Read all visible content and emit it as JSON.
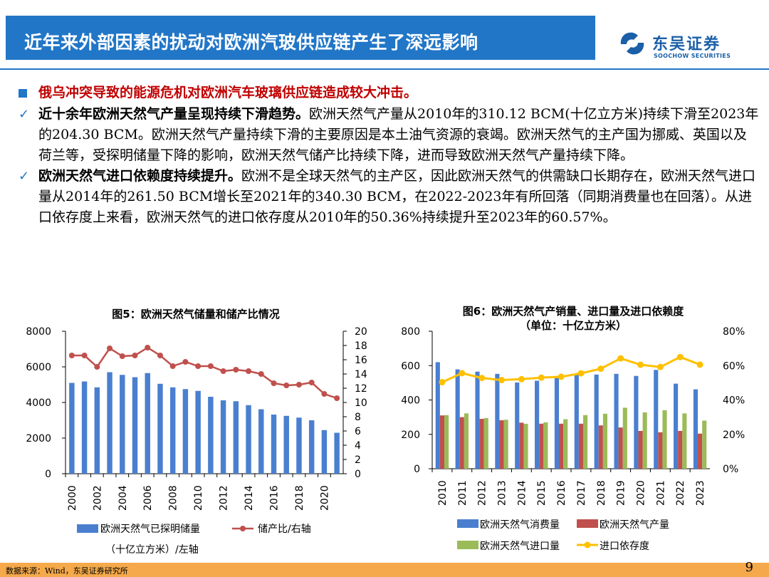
{
  "header": {
    "title": "近年来外部因素的扰动对欧洲汽玻供应链产生了深远影响"
  },
  "logo": {
    "cn": "东吴证券",
    "en": "SOOCHOW SECURITIES"
  },
  "bullets": {
    "lead": "俄乌冲突导致的能源危机对欧洲汽车玻璃供应链造成较大冲击。",
    "items": [
      {
        "bold": "近十余年欧洲天然气产量呈现持续下滑趋势。",
        "text": "欧洲天然气产量从2010年的310.12 BCM(十亿立方米)持续下滑至2023年的204.30 BCM。欧洲天然气产量持续下滑的主要原因是本土油气资源的衰竭。欧洲天然气的主产国为挪威、英国以及荷兰等，受探明储量下降的影响，欧洲天然气储产比持续下降，进而导致欧洲天然气产量持续下降。"
      },
      {
        "bold": "欧洲天然气进口依赖度持续提升。",
        "text": "欧洲不是全球天然气的主产区，因此欧洲天然气的供需缺口长期存在，欧洲天然气进口量从2014年的261.50 BCM增长至2021年的340.30 BCM，在2022-2023年有所回落（同期消费量也在回落）。从进口依存度上来看，欧洲天然气的进口依存度从2010年的50.36%持续提升至2023年的60.57%。"
      }
    ]
  },
  "footer": {
    "source": "数据来源：Wind，东吴证券研究所",
    "page": "9"
  },
  "colors": {
    "brand": "#2176c7",
    "lead": "#c00000",
    "bar_blue": "#4a7fd0",
    "bar_red": "#c0504d",
    "bar_green": "#9bbb59",
    "line_red": "#c0504d",
    "line_yellow": "#ffc000"
  },
  "chart_data": [
    {
      "type": "bar",
      "title": "图5：欧洲天然气储量和储产比情况",
      "categories": [
        "2000",
        "2001",
        "2002",
        "2003",
        "2004",
        "2005",
        "2006",
        "2007",
        "2008",
        "2009",
        "2010",
        "2011",
        "2012",
        "2013",
        "2014",
        "2015",
        "2016",
        "2017",
        "2018",
        "2019",
        "2020",
        "2021"
      ],
      "x_tick_labels": [
        "2000",
        "2002",
        "2004",
        "2006",
        "2008",
        "2010",
        "2012",
        "2014",
        "2016",
        "2018",
        "2020"
      ],
      "series": [
        {
          "name": "欧洲天然气已探明储量（十亿立方米）/左轴",
          "kind": "bar",
          "axis": "left",
          "values": [
            5100,
            5180,
            4850,
            5700,
            5550,
            5420,
            5650,
            5050,
            4850,
            4750,
            4650,
            4320,
            4120,
            4070,
            3850,
            3620,
            3320,
            3250,
            3150,
            3000,
            2450,
            2300
          ]
        },
        {
          "name": "储产比/右轴",
          "kind": "line",
          "axis": "right",
          "values": [
            16.6,
            16.6,
            15.0,
            17.6,
            16.5,
            16.6,
            17.7,
            16.6,
            15.1,
            15.7,
            15.1,
            15.1,
            14.4,
            14.6,
            14.4,
            14.0,
            12.7,
            12.4,
            12.5,
            12.8,
            11.2,
            10.6
          ]
        }
      ],
      "ylim_left": [
        0,
        8000
      ],
      "yticks_left": [
        "0",
        "2000",
        "4000",
        "6000",
        "8000"
      ],
      "ylim_right": [
        0,
        20
      ],
      "yticks_right": [
        "0",
        "2",
        "4",
        "6",
        "8",
        "10",
        "12",
        "14",
        "16",
        "18",
        "20"
      ],
      "legend": [
        "欧洲天然气已探明储量",
        "储产比/右轴",
        "（十亿立方米）/左轴"
      ]
    },
    {
      "type": "bar",
      "title": "图6：欧洲天然气产销量、进口量及进口依赖度",
      "subtitle": "（单位：十亿立方米）",
      "categories": [
        "2010",
        "2011",
        "2012",
        "2013",
        "2014",
        "2015",
        "2016",
        "2017",
        "2018",
        "2019",
        "2020",
        "2021",
        "2022",
        "2023"
      ],
      "series": [
        {
          "name": "欧洲天然气消费量",
          "kind": "bar",
          "axis": "left",
          "values": [
            620,
            578,
            565,
            552,
            502,
            512,
            528,
            552,
            548,
            552,
            540,
            575,
            495,
            462
          ]
        },
        {
          "name": "欧洲天然气产量",
          "kind": "bar",
          "axis": "left",
          "values": [
            310.12,
            300,
            290,
            282,
            268,
            262,
            262,
            262,
            252,
            240,
            220,
            212,
            220,
            204.3
          ]
        },
        {
          "name": "欧洲天然气进口量",
          "kind": "bar",
          "axis": "left",
          "values": [
            312,
            322,
            295,
            285,
            261.5,
            270,
            288,
            312,
            320,
            355,
            328,
            340.3,
            322,
            280
          ]
        },
        {
          "name": "进口依存度",
          "kind": "line",
          "axis": "right",
          "values": [
            50.36,
            55.6,
            52.8,
            51.6,
            52.1,
            53.0,
            53.5,
            55.5,
            58.2,
            64.2,
            60.5,
            59.2,
            65.0,
            60.57
          ]
        }
      ],
      "ylim_left": [
        0,
        800
      ],
      "yticks_left": [
        "0",
        "200",
        "400",
        "600",
        "800"
      ],
      "ylim_right": [
        0,
        80
      ],
      "yticks_right": [
        "0%",
        "20%",
        "40%",
        "60%",
        "80%"
      ]
    }
  ]
}
